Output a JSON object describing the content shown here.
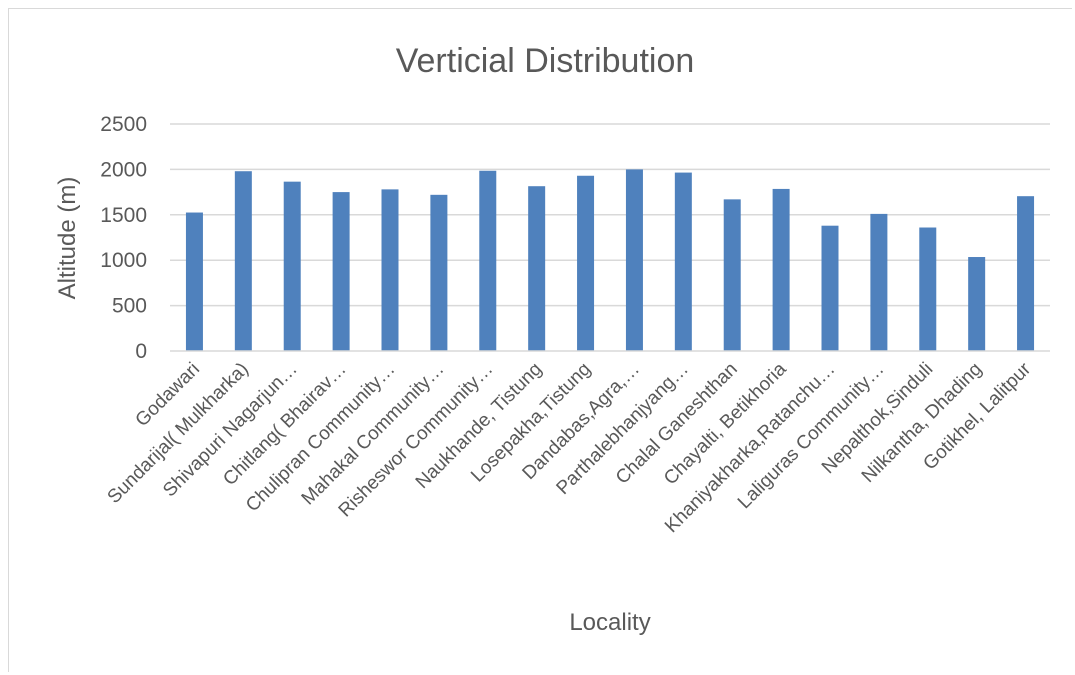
{
  "chart_data": {
    "type": "bar",
    "title": "Verticial Distribution",
    "xlabel": "Locality",
    "ylabel": "Altitude (m)",
    "ylim": [
      0,
      2500
    ],
    "yticks": [
      "0",
      "500",
      "1000",
      "1500",
      "2000",
      "2500"
    ],
    "grid": true,
    "legend": "none",
    "bar_color": "#4f81bd",
    "categories": [
      "Godawari",
      "Sundarijal( Mulkharka)",
      "Shivapuri Nagarjun…",
      "Chitlang( Bhairav…",
      "Chulipran Community…",
      "Mahakal Community…",
      "Risheswor Community…",
      "Naukhande, Tistung",
      "Losepakha,Tistung",
      "Dandabas,Agra,…",
      "Parthalebhanjyang…",
      "Chalal Ganeshthan",
      "Chayalti, Betikhoria",
      "Khaniyakharka,Ratanchu…",
      "Laliguras Community…",
      "Nepalthok,Sinduli",
      "Nilkantha, Dhading",
      "Gotikhel, Lalitpur"
    ],
    "values": [
      1525,
      1980,
      1865,
      1750,
      1780,
      1720,
      1985,
      1815,
      1930,
      2000,
      1965,
      1670,
      1785,
      1380,
      1510,
      1360,
      1035,
      1705
    ]
  }
}
